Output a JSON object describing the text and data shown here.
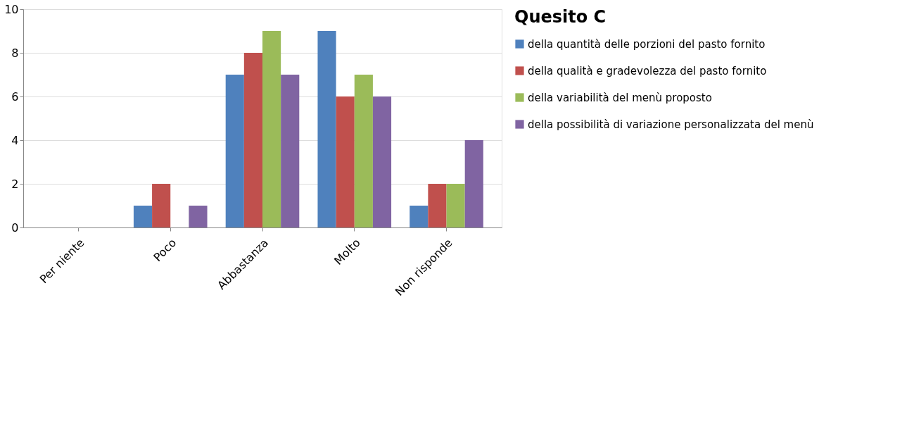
{
  "chart_data": {
    "type": "bar",
    "title": "Quesito C",
    "categories": [
      "Per niente",
      "Poco",
      "Abbastanza",
      "Molto",
      "Non risponde"
    ],
    "series": [
      {
        "name": "della quantità delle porzioni del pasto fornito",
        "color": "#4f81bd",
        "values": [
          0,
          1,
          7,
          9,
          1
        ]
      },
      {
        "name": "della qualità e gradevolezza del pasto fornito",
        "color": "#c0504d",
        "values": [
          0,
          2,
          8,
          6,
          2
        ]
      },
      {
        "name": "della variabilità del menù proposto",
        "color": "#9bbb59",
        "values": [
          0,
          0,
          9,
          7,
          2
        ]
      },
      {
        "name": "della possibilità di variazione personalizzata del menù",
        "color": "#8064a2",
        "values": [
          0,
          1,
          7,
          6,
          4
        ]
      }
    ],
    "ylim": [
      0,
      10
    ],
    "yticks": [
      0,
      2,
      4,
      6,
      8,
      10
    ],
    "grid": "y",
    "legend": "right"
  }
}
